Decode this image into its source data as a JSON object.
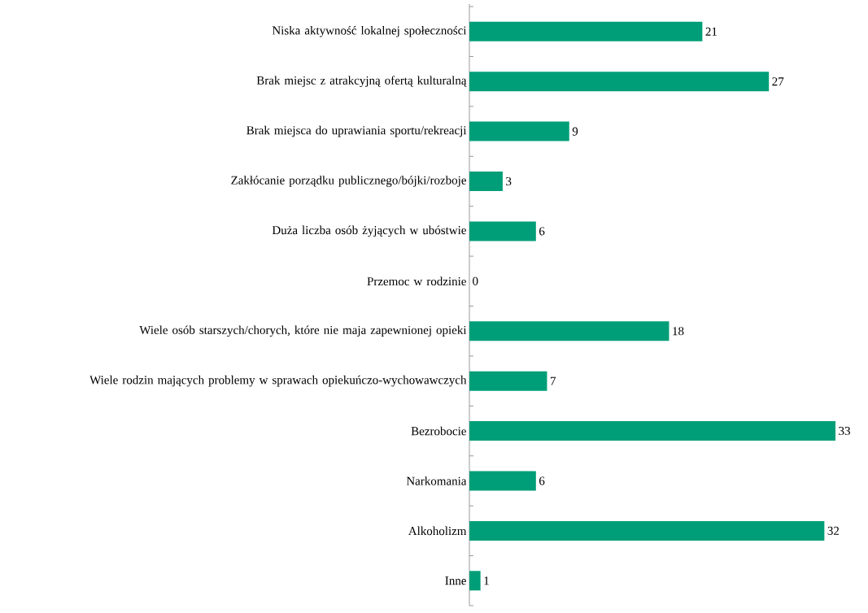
{
  "chart_data": {
    "type": "bar",
    "orientation": "horizontal",
    "data_labels": true,
    "color": "#009e78",
    "categories": [
      "Niska aktywność lokalnej społeczności",
      "Brak miejsc z atrakcyjną ofertą kulturalną",
      "Brak miejsca do uprawiania sportu/rekreacji",
      "Zakłócanie porządku publicznego/bójki/rozboje",
      "Duża liczba osób żyjących w ubóstwie",
      "Przemoc w rodzinie",
      "Wiele osób starszych/chorych, które nie maja zapewnionej opieki",
      "Wiele rodzin mających problemy w sprawach opiekuńczo-wychowawczych",
      "Bezrobocie",
      "Narkomania",
      "Alkoholizm",
      "Inne"
    ],
    "values": [
      21,
      27,
      9,
      3,
      6,
      0,
      18,
      7,
      33,
      6,
      32,
      1
    ]
  }
}
